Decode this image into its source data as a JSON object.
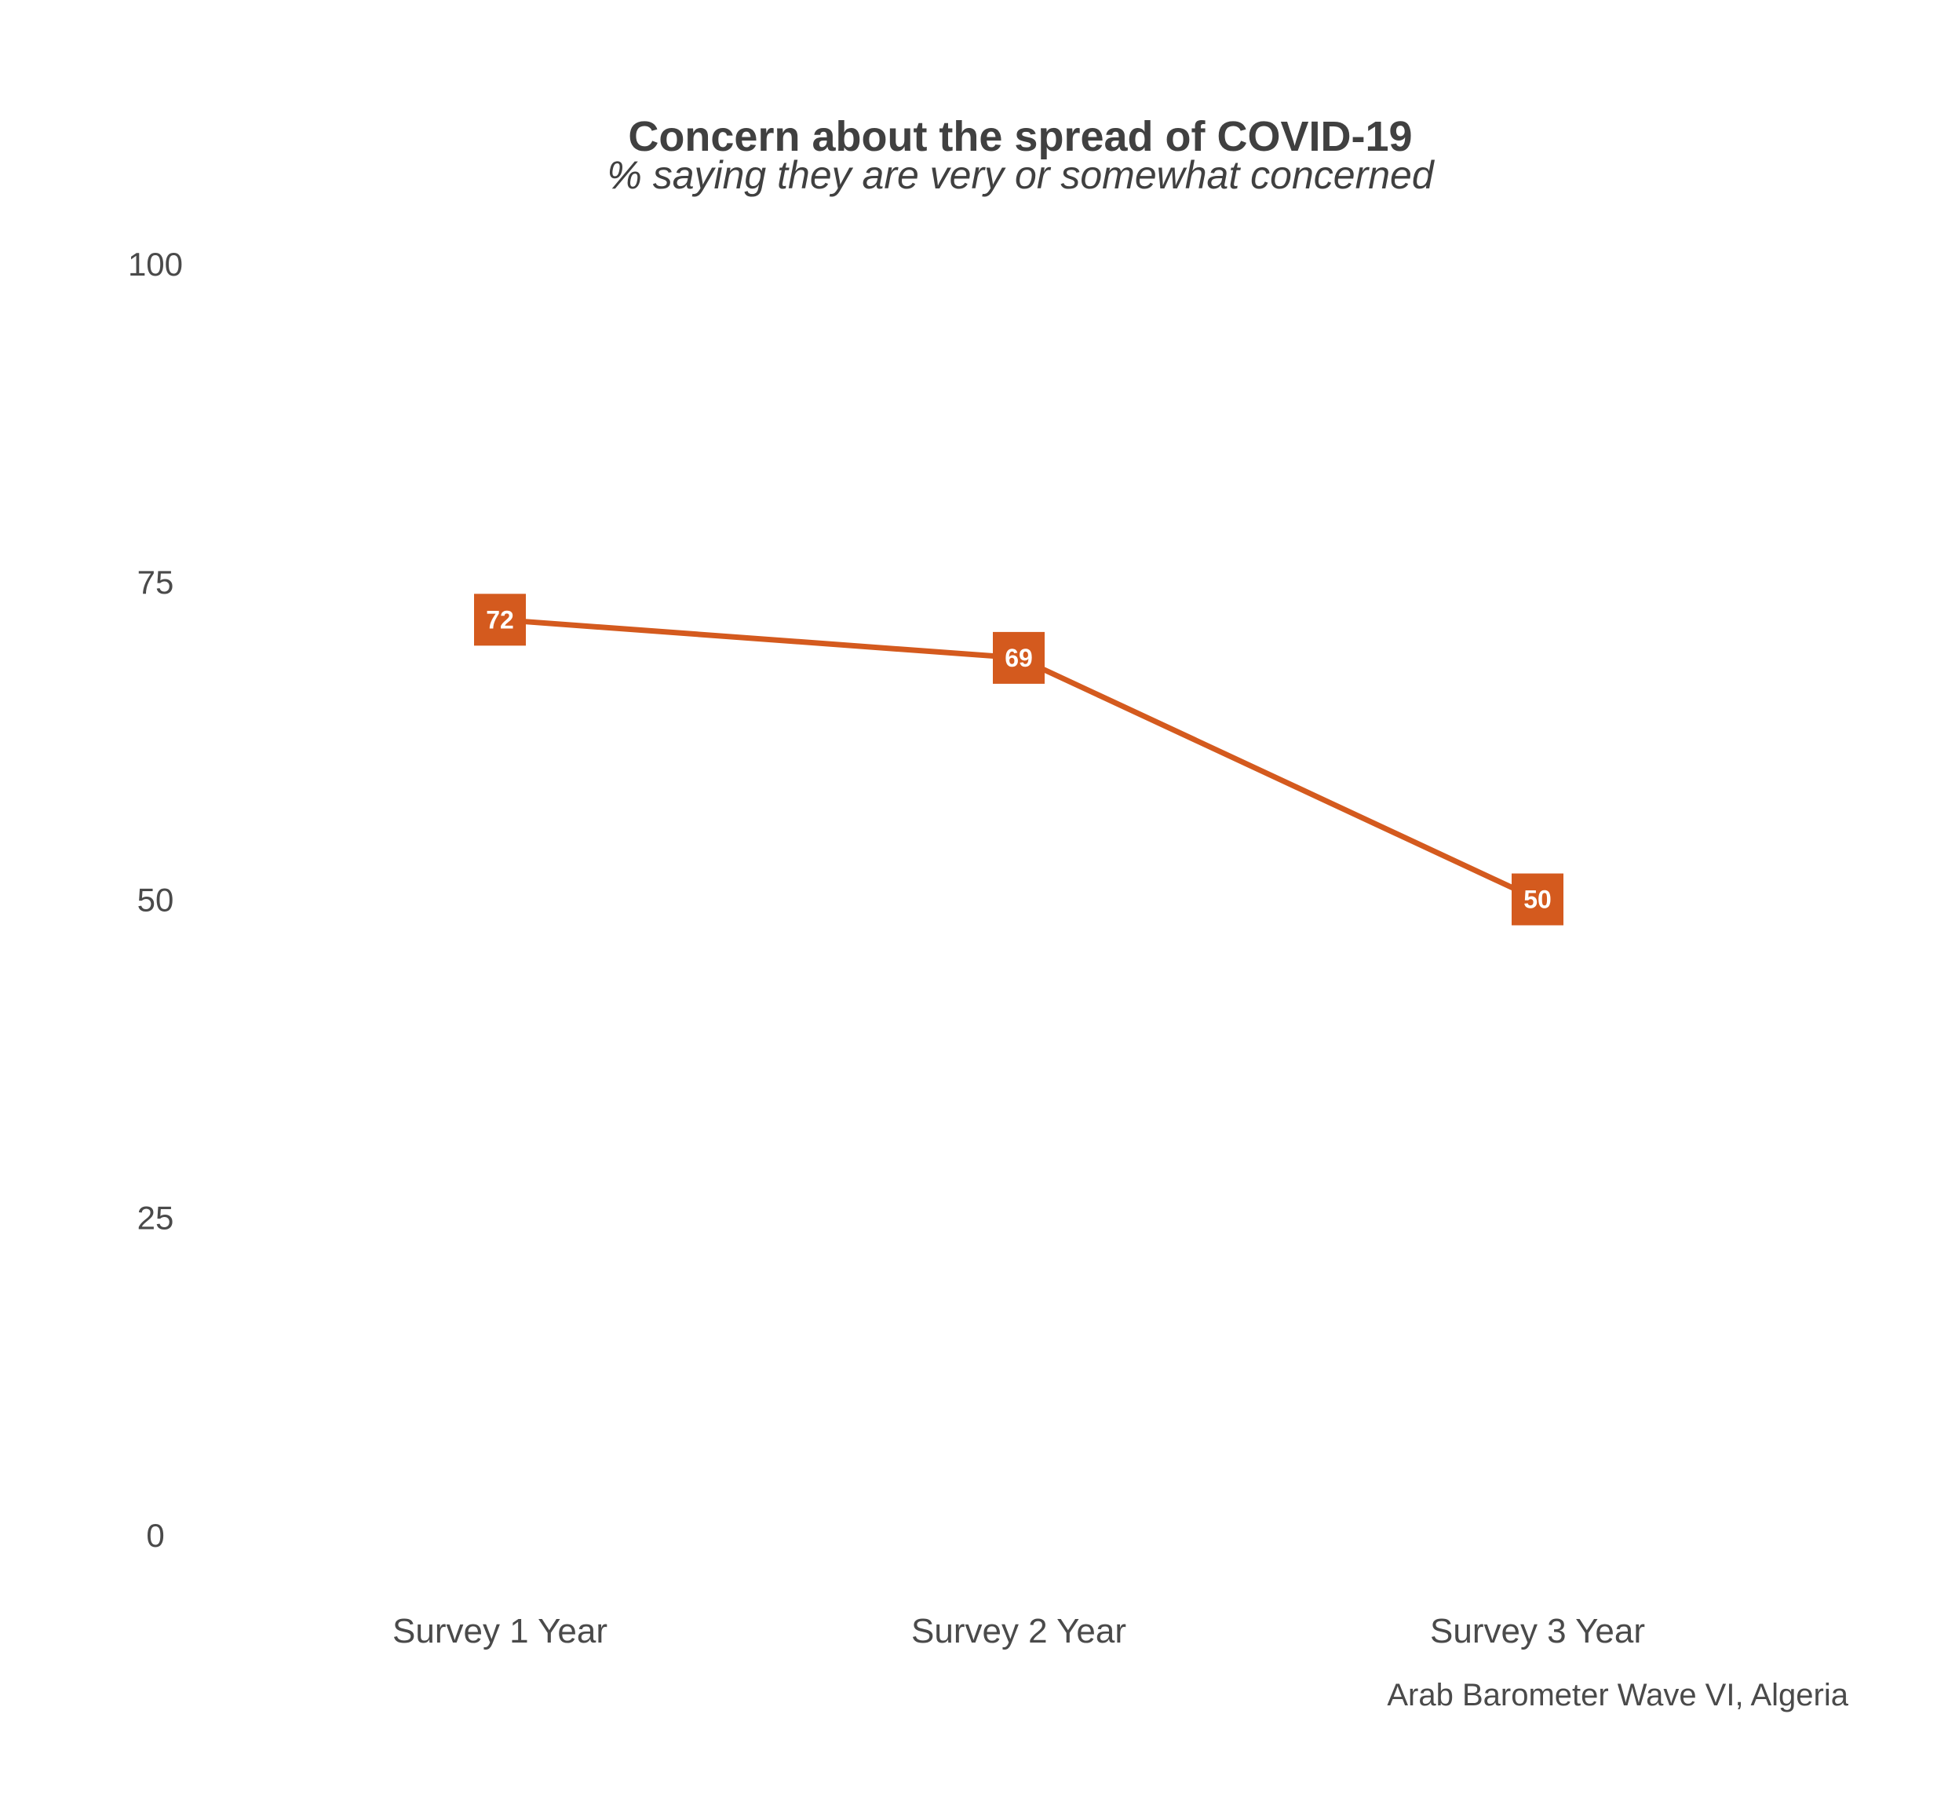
{
  "chart_data": {
    "type": "line",
    "title": "Concern about the spread of COVID-19",
    "subtitle": "% saying they are very or somewhat concerned",
    "caption": "Arab Barometer Wave VI, Algeria",
    "categories": [
      "Survey 1 Year",
      "Survey 2 Year",
      "Survey 3 Year"
    ],
    "series": [
      {
        "values": [
          72,
          69,
          50
        ],
        "color": "#d45a1e"
      }
    ],
    "data_labels": [
      "72",
      "69",
      "50"
    ],
    "ylim": [
      0,
      100
    ],
    "yticks": [
      0,
      25,
      50,
      75,
      100
    ],
    "ytick_labels": [
      "0",
      "25",
      "50",
      "75",
      "100"
    ],
    "grid": false,
    "legend": "none"
  }
}
